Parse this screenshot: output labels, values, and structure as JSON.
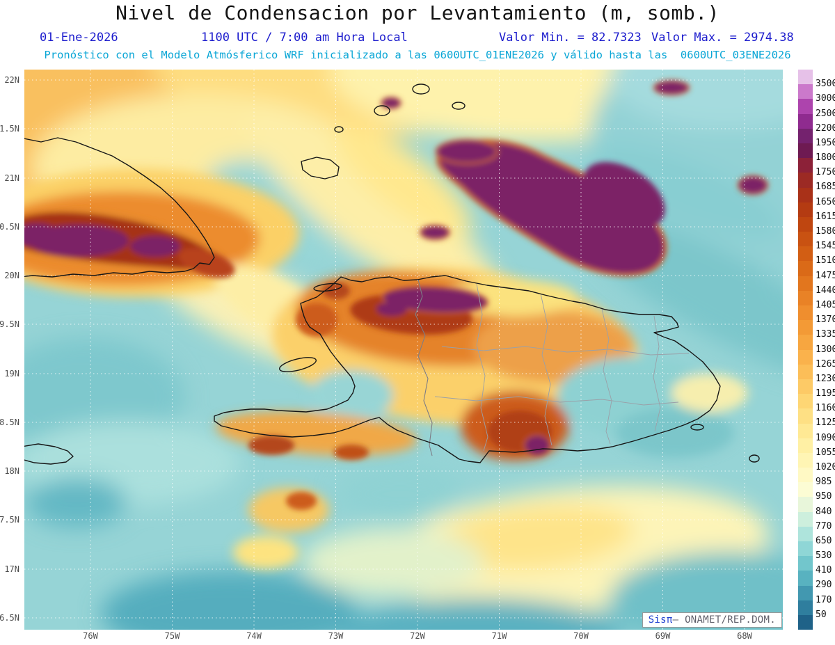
{
  "title": "Nivel de Condensacion por Levantamiento (m, somb.)",
  "header": {
    "date": "01-Ene-2026",
    "time": "1100 UTC / 7:00 am Hora Local",
    "value_min_label": "Valor Min. = 82.7323",
    "value_max_label": "Valor Max. = 2974.38",
    "model_line": "Pronóstico con el Modelo Atmósferico WRF inicializado a las 0600UTC_01ENE2026 y válido hasta las  0600UTC_03ENE2026"
  },
  "watermark": {
    "brand": "Sisπ",
    "suffix": "– ONAMET/REP.DOM."
  },
  "chart_data": {
    "type": "heatmap",
    "title": "Nivel de Condensacion por Levantamiento (m, somb.)",
    "units": "m",
    "valid_date": "01-Ene-2026",
    "valid_time_utc": "1100 UTC",
    "valid_time_local": "7:00 am Hora Local",
    "model": "WRF",
    "initialized": "0600UTC_01ENE2026",
    "valid_until": "0600UTC_03ENE2026",
    "value_min": 82.7323,
    "value_max": 2974.38,
    "x_ticks": [
      "76W",
      "75W",
      "74W",
      "73W",
      "72W",
      "71W",
      "70W",
      "69W",
      "68W"
    ],
    "y_ticks": [
      "22N",
      "1.5N",
      "21N",
      "0.5N",
      "20N",
      "9.5N",
      "19N",
      "8.5N",
      "18N",
      "7.5N",
      "17N",
      "6.5N"
    ],
    "colorbar_levels": [
      3500,
      3000,
      2500,
      2200,
      1950,
      1800,
      1750,
      1685,
      1650,
      1615,
      1580,
      1545,
      1510,
      1475,
      1440,
      1405,
      1370,
      1335,
      1300,
      1265,
      1230,
      1195,
      1160,
      1125,
      1090,
      1055,
      1020,
      985,
      950,
      840,
      770,
      650,
      530,
      410,
      290,
      170,
      50
    ],
    "colorbar_colors": [
      "#e6c1e8",
      "#cb79cb",
      "#ad44ad",
      "#8f2b8f",
      "#74226e",
      "#6e1a52",
      "#8c2138",
      "#9c2a24",
      "#a93118",
      "#b43b12",
      "#bf4610",
      "#c95212",
      "#d25e14",
      "#da6a18",
      "#e2761e",
      "#e98226",
      "#ef8e2e",
      "#f39a36",
      "#f7a640",
      "#fab24c",
      "#fcbe58",
      "#fdca66",
      "#fed674",
      "#fee084",
      "#ffe994",
      "#fff0a4",
      "#fff5b4",
      "#fff9c4",
      "#fcfcd4",
      "#e8f6da",
      "#cdefdd",
      "#aee4dc",
      "#8fd6d6",
      "#72c6cc",
      "#58b2c0",
      "#4298b0",
      "#2f7e9e",
      "#1f6288"
    ]
  }
}
